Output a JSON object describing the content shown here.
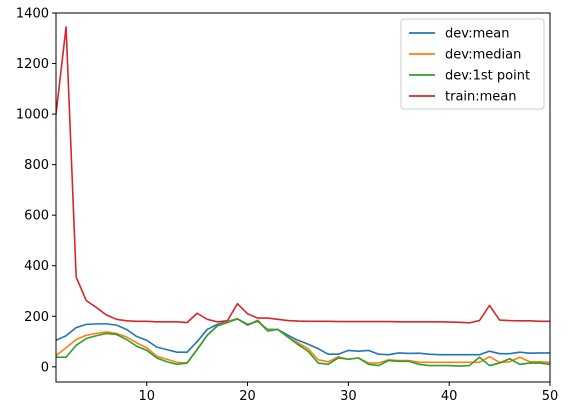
{
  "chart_data": {
    "type": "line",
    "title": "",
    "xlabel": "",
    "ylabel": "",
    "xlim": [
      1,
      50
    ],
    "ylim": [
      -60,
      1400
    ],
    "xticks": [
      10,
      20,
      30,
      40,
      50
    ],
    "yticks": [
      0,
      200,
      400,
      600,
      800,
      1000,
      1200,
      1400
    ],
    "grid": false,
    "legend_position": "top-right",
    "x": [
      1,
      2,
      3,
      4,
      5,
      6,
      7,
      8,
      9,
      10,
      11,
      12,
      13,
      14,
      15,
      16,
      17,
      18,
      19,
      20,
      21,
      22,
      23,
      24,
      25,
      26,
      27,
      28,
      29,
      30,
      31,
      32,
      33,
      34,
      35,
      36,
      37,
      38,
      39,
      40,
      41,
      42,
      43,
      44,
      45,
      46,
      47,
      48,
      49,
      50
    ],
    "series": [
      {
        "name": "dev:mean",
        "color": "#1f77b4",
        "values": [
          105,
          123,
          155,
          168,
          170,
          170,
          165,
          148,
          120,
          105,
          78,
          68,
          58,
          58,
          100,
          148,
          168,
          180,
          190,
          168,
          180,
          148,
          148,
          125,
          105,
          90,
          72,
          50,
          50,
          65,
          62,
          65,
          50,
          48,
          55,
          53,
          54,
          50,
          48,
          48,
          48,
          48,
          48,
          62,
          52,
          52,
          58,
          54,
          55,
          55
        ]
      },
      {
        "name": "dev:median",
        "color": "#ff7f0e",
        "values": [
          45,
          75,
          108,
          125,
          132,
          138,
          132,
          118,
          95,
          75,
          42,
          30,
          18,
          15,
          70,
          125,
          162,
          178,
          190,
          165,
          185,
          145,
          148,
          118,
          95,
          72,
          28,
          20,
          40,
          30,
          35,
          15,
          15,
          28,
          25,
          25,
          18,
          18,
          18,
          18,
          18,
          18,
          18,
          40,
          18,
          20,
          38,
          20,
          20,
          18
        ]
      },
      {
        "name": "dev:1st point",
        "color": "#2ca02c",
        "values": [
          38,
          38,
          85,
          112,
          123,
          132,
          128,
          108,
          82,
          65,
          35,
          20,
          10,
          15,
          68,
          125,
          162,
          175,
          190,
          165,
          182,
          142,
          148,
          118,
          88,
          62,
          15,
          10,
          35,
          30,
          35,
          10,
          5,
          25,
          22,
          22,
          10,
          5,
          5,
          5,
          3,
          5,
          38,
          5,
          15,
          32,
          10,
          15,
          15,
          10
        ]
      },
      {
        "name": "train:mean",
        "color": "#d62728",
        "values": [
          1000,
          1345,
          355,
          262,
          235,
          205,
          188,
          182,
          180,
          180,
          178,
          178,
          178,
          175,
          212,
          188,
          178,
          182,
          250,
          210,
          193,
          193,
          188,
          183,
          181,
          180,
          180,
          180,
          179,
          179,
          179,
          179,
          179,
          179,
          178,
          178,
          178,
          178,
          178,
          177,
          176,
          174,
          183,
          243,
          185,
          183,
          182,
          182,
          180,
          180
        ]
      }
    ]
  }
}
